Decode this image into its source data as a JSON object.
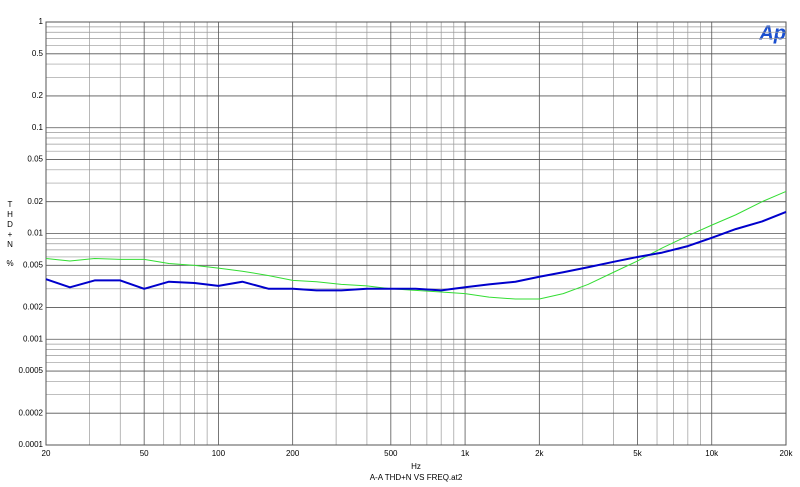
{
  "chart_data": {
    "type": "line",
    "logo": "Ap",
    "y_label_letters": [
      "T",
      "H",
      "D",
      "+",
      "N"
    ],
    "y_unit": "%",
    "x_label": "Hz",
    "footer": "A-A THD+N VS FREQ.at2",
    "log_x": true,
    "log_y": true,
    "grid": true,
    "xlim": [
      20,
      20000
    ],
    "ylim": [
      0.0001,
      1
    ],
    "xticks": [
      20,
      50,
      100,
      200,
      500,
      {
        "value": 1000,
        "label": "1k"
      },
      {
        "value": 2000,
        "label": "2k"
      },
      {
        "value": 5000,
        "label": "5k"
      },
      {
        "value": 10000,
        "label": "10k"
      },
      {
        "value": 20000,
        "label": "20k"
      }
    ],
    "yticks": [
      1,
      0.5,
      0.2,
      0.1,
      0.05,
      0.02,
      0.01,
      0.005,
      0.002,
      0.001,
      0.0005,
      0.0002,
      0.0001
    ],
    "minor_xticks": [
      30,
      40,
      60,
      70,
      80,
      90,
      300,
      400,
      600,
      700,
      800,
      900,
      3000,
      4000,
      6000,
      7000,
      8000,
      9000
    ],
    "minor_yticks": [
      0.9,
      0.8,
      0.7,
      0.6,
      0.4,
      0.3,
      0.09,
      0.08,
      0.07,
      0.06,
      0.04,
      0.03,
      0.009,
      0.008,
      0.007,
      0.006,
      0.004,
      0.003,
      0.0009,
      0.0008,
      0.0007,
      0.0006,
      0.0004,
      0.0003
    ],
    "x": [
      20,
      25,
      31.5,
      40,
      50,
      63,
      80,
      100,
      125,
      160,
      200,
      250,
      315,
      400,
      500,
      630,
      800,
      1000,
      1250,
      1600,
      2000,
      2500,
      3150,
      4000,
      5000,
      6300,
      8000,
      10000,
      12500,
      16000,
      20000
    ],
    "series": [
      {
        "color": "#33dd33",
        "width": 1,
        "values": [
          0.0058,
          0.0055,
          0.0058,
          0.0057,
          0.0057,
          0.0052,
          0.005,
          0.0047,
          0.0044,
          0.004,
          0.0036,
          0.0035,
          0.0033,
          0.0032,
          0.003,
          0.0029,
          0.0028,
          0.0027,
          0.0025,
          0.0024,
          0.0024,
          0.0027,
          0.0033,
          0.0043,
          0.0055,
          0.0073,
          0.0095,
          0.012,
          0.015,
          0.02,
          0.025
        ]
      },
      {
        "color": "#0000cc",
        "width": 2,
        "values": [
          0.0037,
          0.0031,
          0.0036,
          0.0036,
          0.003,
          0.0035,
          0.0034,
          0.0032,
          0.0035,
          0.003,
          0.003,
          0.0029,
          0.0029,
          0.003,
          0.003,
          0.003,
          0.0029,
          0.0031,
          0.0033,
          0.0035,
          0.0039,
          0.0043,
          0.0048,
          0.0054,
          0.006,
          0.0066,
          0.0076,
          0.0091,
          0.011,
          0.013,
          0.016
        ]
      }
    ]
  }
}
